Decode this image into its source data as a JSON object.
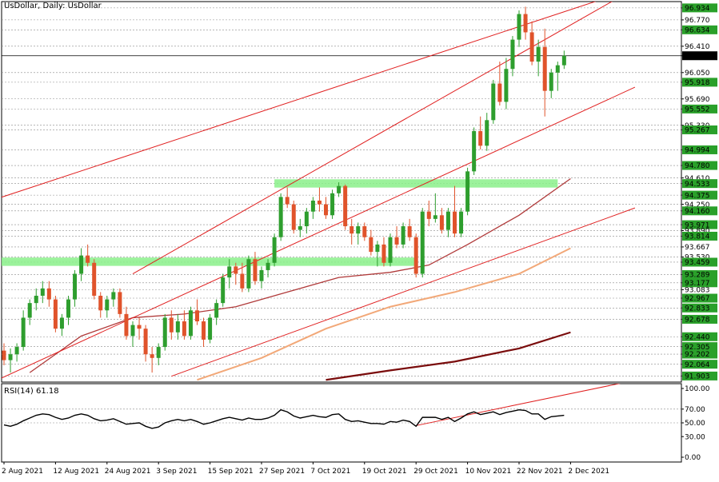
{
  "window": {
    "title": "UsDollar, Daily:  UsDollar"
  },
  "rsi_panel": {
    "title": "RSI(14) 61.18"
  },
  "colors": {
    "bull": "#2e9e2e",
    "bear": "#e0532b",
    "trendline": "#e02020",
    "ma_short": "#b03a3a",
    "ma_mid": "#f2a878",
    "ma_long": "#7a0c0c",
    "zone": "#8af08a",
    "highlight_label": "#2aa02a"
  },
  "chart_data": [
    {
      "type": "candlestick",
      "title": "UsDollar, Daily:  UsDollar",
      "ylim": [
        91.82,
        97.02
      ],
      "x_tick_labels": [
        "2 Aug 2021",
        "12 Aug 2021",
        "24 Aug 2021",
        "3 Sep 2021",
        "15 Sep 2021",
        "27 Sep 2021",
        "7 Oct 2021",
        "19 Oct 2021",
        "29 Oct 2021",
        "10 Nov 2021",
        "22 Nov 2021",
        "2 Dec 2021"
      ],
      "x_tick_index": [
        0,
        8,
        16,
        24,
        32,
        40,
        48,
        56,
        64,
        72,
        80,
        88
      ],
      "y_tick_labels": [
        "96.934",
        "96.770",
        "96.634",
        "96.410",
        "96.280",
        "96.050",
        "95.918",
        "95.690",
        "95.552",
        "95.330",
        "95.267",
        "94.994",
        "94.780",
        "94.610",
        "94.533",
        "94.375",
        "94.250",
        "94.160",
        "93.971",
        "93.890",
        "93.814",
        "93.667",
        "93.530",
        "93.459",
        "93.289",
        "93.177",
        "93.083",
        "92.967",
        "92.833",
        "92.678",
        "92.440",
        "92.305",
        "92.202",
        "92.064",
        "91.903"
      ],
      "highlighted_labels": [
        "96.934",
        "96.634",
        "96.280",
        "95.918",
        "95.552",
        "95.267",
        "94.994",
        "94.780",
        "94.533",
        "94.375",
        "94.160",
        "93.971",
        "93.814",
        "93.459",
        "93.289",
        "93.177",
        "92.967",
        "92.833",
        "92.678",
        "92.440",
        "92.305",
        "92.202",
        "92.064",
        "91.903"
      ],
      "current_price": 96.28,
      "ohlc": [
        [
          92.25,
          92.35,
          92.05,
          92.12
        ],
        [
          92.12,
          92.28,
          91.95,
          92.2
        ],
        [
          92.2,
          92.35,
          92.1,
          92.3
        ],
        [
          92.3,
          92.8,
          92.25,
          92.7
        ],
        [
          92.7,
          92.95,
          92.6,
          92.9
        ],
        [
          92.9,
          93.1,
          92.8,
          93.0
        ],
        [
          93.0,
          93.2,
          92.9,
          93.1
        ],
        [
          93.1,
          93.2,
          92.85,
          92.95
        ],
        [
          92.95,
          93.0,
          92.5,
          92.55
        ],
        [
          92.55,
          92.75,
          92.45,
          92.7
        ],
        [
          92.7,
          93.0,
          92.6,
          92.95
        ],
        [
          92.95,
          93.35,
          92.85,
          93.3
        ],
        [
          93.3,
          93.65,
          93.2,
          93.55
        ],
        [
          93.55,
          93.7,
          93.4,
          93.45
        ],
        [
          93.45,
          93.5,
          92.95,
          93.0
        ],
        [
          93.0,
          93.05,
          92.7,
          92.8
        ],
        [
          92.8,
          93.0,
          92.7,
          92.95
        ],
        [
          92.95,
          93.1,
          92.85,
          93.05
        ],
        [
          93.05,
          93.1,
          92.7,
          92.75
        ],
        [
          92.75,
          92.85,
          92.4,
          92.45
        ],
        [
          92.45,
          92.65,
          92.3,
          92.6
        ],
        [
          92.6,
          92.7,
          92.4,
          92.55
        ],
        [
          92.55,
          92.6,
          92.1,
          92.2
        ],
        [
          92.2,
          92.3,
          91.95,
          92.15
        ],
        [
          92.15,
          92.35,
          92.05,
          92.3
        ],
        [
          92.3,
          92.75,
          92.25,
          92.7
        ],
        [
          92.7,
          92.8,
          92.4,
          92.5
        ],
        [
          92.5,
          92.75,
          92.4,
          92.65
        ],
        [
          92.65,
          92.8,
          92.4,
          92.45
        ],
        [
          92.45,
          92.85,
          92.4,
          92.8
        ],
        [
          92.8,
          92.95,
          92.6,
          92.65
        ],
        [
          92.65,
          92.7,
          92.3,
          92.4
        ],
        [
          92.4,
          92.75,
          92.35,
          92.7
        ],
        [
          92.7,
          92.95,
          92.6,
          92.9
        ],
        [
          92.9,
          93.3,
          92.85,
          93.25
        ],
        [
          93.25,
          93.5,
          93.1,
          93.4
        ],
        [
          93.4,
          93.45,
          93.15,
          93.3
        ],
        [
          93.3,
          93.45,
          93.05,
          93.1
        ],
        [
          93.1,
          93.55,
          93.05,
          93.5
        ],
        [
          93.5,
          93.6,
          93.15,
          93.2
        ],
        [
          93.2,
          93.4,
          93.1,
          93.35
        ],
        [
          93.35,
          93.5,
          93.25,
          93.45
        ],
        [
          93.45,
          93.85,
          93.4,
          93.8
        ],
        [
          93.8,
          94.4,
          93.75,
          94.35
        ],
        [
          94.35,
          94.48,
          94.2,
          94.25
        ],
        [
          94.25,
          94.3,
          93.85,
          93.9
        ],
        [
          93.9,
          94.05,
          93.8,
          93.95
        ],
        [
          93.95,
          94.2,
          93.85,
          94.15
        ],
        [
          94.15,
          94.35,
          94.05,
          94.3
        ],
        [
          94.3,
          94.48,
          94.15,
          94.25
        ],
        [
          94.25,
          94.35,
          94.05,
          94.1
        ],
        [
          94.1,
          94.45,
          94.05,
          94.4
        ],
        [
          94.4,
          94.55,
          94.35,
          94.5
        ],
        [
          94.5,
          94.52,
          93.9,
          93.95
        ],
        [
          93.95,
          94.05,
          93.7,
          93.85
        ],
        [
          93.85,
          94.0,
          93.7,
          93.95
        ],
        [
          93.95,
          94.0,
          93.75,
          93.8
        ],
        [
          93.8,
          93.9,
          93.55,
          93.6
        ],
        [
          93.6,
          93.75,
          93.4,
          93.7
        ],
        [
          93.7,
          93.8,
          93.4,
          93.45
        ],
        [
          93.45,
          93.85,
          93.4,
          93.8
        ],
        [
          93.8,
          93.95,
          93.65,
          93.7
        ],
        [
          93.7,
          94.0,
          93.65,
          93.95
        ],
        [
          93.95,
          94.05,
          93.75,
          93.8
        ],
        [
          93.8,
          93.85,
          93.25,
          93.3
        ],
        [
          93.3,
          94.2,
          93.25,
          94.15
        ],
        [
          94.15,
          94.3,
          93.95,
          94.05
        ],
        [
          94.05,
          94.4,
          94.0,
          94.1
        ],
        [
          94.1,
          94.2,
          93.85,
          93.9
        ],
        [
          93.9,
          94.2,
          93.8,
          94.15
        ],
        [
          94.15,
          94.5,
          93.8,
          93.85
        ],
        [
          93.85,
          94.2,
          93.8,
          94.15
        ],
        [
          94.15,
          94.75,
          94.1,
          94.7
        ],
        [
          94.7,
          95.3,
          94.65,
          95.25
        ],
        [
          95.25,
          95.45,
          95.0,
          95.05
        ],
        [
          95.05,
          95.5,
          94.98,
          95.4
        ],
        [
          95.4,
          95.95,
          95.35,
          95.9
        ],
        [
          95.9,
          96.2,
          95.6,
          95.65
        ],
        [
          95.65,
          96.25,
          95.55,
          96.1
        ],
        [
          96.1,
          96.55,
          96.0,
          96.5
        ],
        [
          96.5,
          96.9,
          96.4,
          96.85
        ],
        [
          96.85,
          96.95,
          96.5,
          96.6
        ],
        [
          96.6,
          96.75,
          96.15,
          96.2
        ],
        [
          96.2,
          96.5,
          96.0,
          96.4
        ],
        [
          96.4,
          96.65,
          95.45,
          95.8
        ],
        [
          95.8,
          96.1,
          95.7,
          96.05
        ],
        [
          96.05,
          96.2,
          95.8,
          96.15
        ],
        [
          96.15,
          96.35,
          96.1,
          96.28
        ]
      ],
      "trendlines": [
        {
          "name": "upper-channel",
          "from": [
            -2,
            94.3
          ],
          "to": [
            98,
            97.2
          ]
        },
        {
          "name": "steep-channel",
          "from": [
            20,
            93.3
          ],
          "to": [
            98,
            97.2
          ]
        },
        {
          "name": "steep-channel-lower",
          "from": [
            -1,
            91.85
          ],
          "to": [
            98,
            95.85
          ]
        },
        {
          "name": "lower-channel",
          "from": [
            26,
            91.9
          ],
          "to": [
            98,
            94.2
          ]
        }
      ],
      "zones": [
        {
          "name": "resistance-zone",
          "from_index": 42,
          "to_index": 86,
          "low": 94.5,
          "high": 94.57
        },
        {
          "name": "support-zone",
          "from_index": -1,
          "to_index": 64,
          "low": 93.43,
          "high": 93.5
        }
      ],
      "moving_averages": [
        {
          "name": "ma-short",
          "from": [
            4,
            91.95
          ],
          "points": [
            [
              12,
              92.45
            ],
            [
              20,
              92.7
            ],
            [
              28,
              92.75
            ],
            [
              36,
              92.85
            ],
            [
              44,
              93.05
            ],
            [
              52,
              93.25
            ],
            [
              60,
              93.32
            ],
            [
              66,
              93.42
            ],
            [
              72,
              93.7
            ],
            [
              80,
              94.1
            ],
            [
              88,
              94.6
            ]
          ]
        },
        {
          "name": "ma-mid",
          "from": [
            30,
            91.85
          ],
          "points": [
            [
              40,
              92.15
            ],
            [
              50,
              92.55
            ],
            [
              60,
              92.85
            ],
            [
              70,
              93.05
            ],
            [
              80,
              93.3
            ],
            [
              88,
              93.65
            ]
          ]
        },
        {
          "name": "ma-long",
          "from": [
            50,
            91.85
          ],
          "points": [
            [
              60,
              91.98
            ],
            [
              70,
              92.1
            ],
            [
              80,
              92.28
            ],
            [
              88,
              92.5
            ]
          ]
        }
      ]
    },
    {
      "type": "line",
      "title": "RSI(14) 61.18",
      "ylim": [
        0,
        100
      ],
      "y_tick_labels": [
        "100.00",
        "70.00",
        "50.00",
        "30.00",
        "0.00"
      ],
      "y_tick_values": [
        100,
        70,
        50,
        30,
        0
      ],
      "levels": [
        70,
        50
      ],
      "value": 61.18,
      "series": [
        {
          "values": [
            47,
            45,
            48,
            53,
            57,
            61,
            63,
            62,
            58,
            55,
            57,
            61,
            63,
            61,
            56,
            53,
            54,
            56,
            52,
            48,
            49,
            50,
            45,
            42,
            44,
            50,
            53,
            55,
            53,
            55,
            52,
            48,
            50,
            53,
            56,
            58,
            56,
            54,
            57,
            55,
            55,
            57,
            61,
            69,
            66,
            60,
            57,
            59,
            61,
            59,
            58,
            62,
            63,
            55,
            52,
            53,
            51,
            49,
            49,
            48,
            52,
            51,
            54,
            52,
            45,
            58,
            58,
            58,
            55,
            58,
            52,
            57,
            63,
            66,
            62,
            64,
            66,
            62,
            65,
            67,
            69,
            68,
            63,
            63,
            55,
            59,
            60,
            61
          ]
        }
      ],
      "trendlines": [
        {
          "name": "rsi-trendline",
          "from": [
            64,
            46
          ],
          "to": [
            96,
            108
          ]
        }
      ]
    }
  ]
}
